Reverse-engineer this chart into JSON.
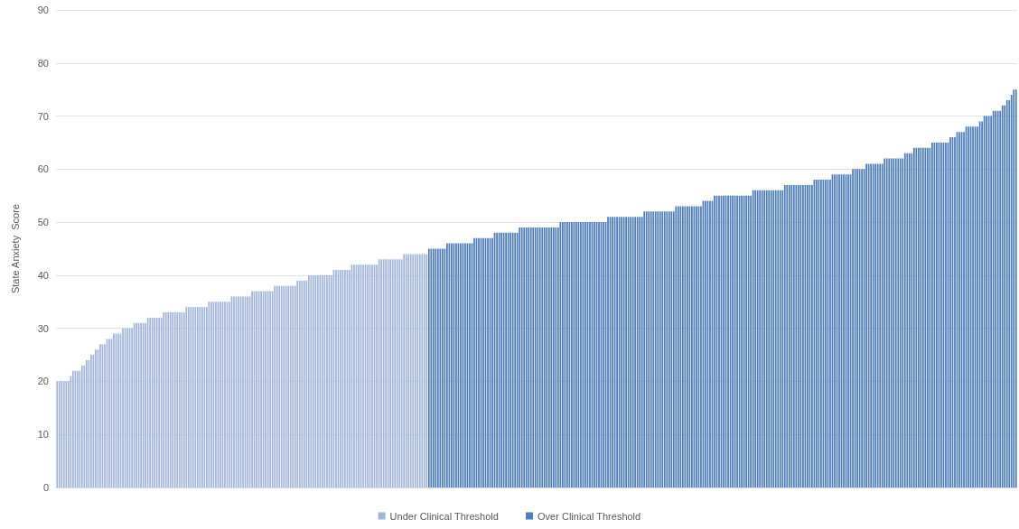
{
  "chart_data": {
    "type": "bar",
    "ylabel": "State Anxiety  Score",
    "ylim": [
      0,
      90
    ],
    "yticks": [
      0,
      10,
      20,
      30,
      40,
      50,
      60,
      70,
      80,
      90
    ],
    "grid": "y",
    "legend": "bottom",
    "categories": [
      null,
      null,
      null,
      null,
      null,
      null,
      null,
      null,
      null,
      null,
      null,
      null,
      null,
      null,
      null,
      null,
      null,
      null,
      null,
      null,
      null,
      null,
      null,
      null,
      null,
      null,
      null,
      null,
      null,
      null,
      null,
      null,
      null,
      null,
      null,
      null,
      null,
      null,
      null,
      null,
      null,
      null,
      null,
      null,
      null,
      null,
      null,
      null,
      null,
      null,
      null,
      null,
      null,
      null,
      null,
      null,
      null,
      null,
      null,
      null,
      null,
      null,
      null,
      null,
      null,
      null,
      null,
      null,
      null,
      null,
      null,
      null,
      null,
      null,
      null,
      null,
      null,
      null,
      null,
      null,
      null,
      null,
      null,
      null,
      null,
      null,
      null,
      null,
      null,
      null,
      null,
      null,
      null,
      null,
      null,
      null,
      null,
      null,
      null,
      null,
      null,
      null,
      null,
      null,
      null,
      null,
      null,
      null,
      null,
      null,
      null,
      null,
      null,
      null,
      null,
      null,
      null,
      null,
      null,
      null,
      null,
      null,
      null,
      null,
      null,
      null,
      null,
      null,
      null,
      null,
      null,
      null,
      null,
      null,
      null,
      null,
      null,
      null,
      null,
      null,
      null,
      null,
      null,
      null,
      null,
      null,
      null,
      null,
      null,
      null,
      null,
      null,
      null,
      null,
      null,
      null,
      null,
      null,
      null,
      null,
      null,
      null,
      null,
      null,
      null,
      null,
      null,
      null,
      null,
      null,
      null,
      null,
      null,
      null,
      null,
      null,
      null,
      null,
      null,
      null,
      null,
      null,
      null,
      null,
      null,
      null,
      null,
      null,
      null,
      null,
      null,
      null,
      null,
      null,
      null,
      null,
      null,
      null,
      null,
      null,
      null,
      null,
      null,
      null,
      null,
      null,
      null,
      null,
      null,
      null,
      null,
      null,
      null,
      null,
      null,
      null,
      null,
      null,
      null,
      null,
      null,
      null,
      null,
      null,
      null,
      null,
      null,
      null,
      null,
      null,
      null,
      null,
      null,
      null,
      null,
      null,
      null,
      null,
      null,
      null,
      null,
      null,
      null,
      null,
      null,
      null,
      null,
      null,
      null,
      null,
      null,
      null,
      null,
      null,
      null,
      null,
      null,
      null,
      null,
      null,
      null,
      null,
      null,
      null,
      null,
      null,
      null,
      null,
      null,
      null,
      null,
      null,
      null,
      null,
      null,
      null,
      null,
      null,
      null,
      null,
      null,
      null,
      null,
      null,
      null,
      null,
      null,
      null,
      null,
      null,
      null,
      null,
      null,
      null,
      null,
      null,
      null,
      null,
      null,
      null,
      null,
      null,
      null,
      null,
      null,
      null,
      null,
      null,
      null,
      null,
      null,
      null,
      null,
      null,
      null,
      null,
      null,
      null,
      null,
      null,
      null,
      null,
      null,
      null,
      null,
      null,
      null,
      null,
      null,
      null,
      null,
      null,
      null,
      null,
      null,
      null,
      null,
      null,
      null,
      null,
      null,
      null,
      null,
      null,
      null,
      null,
      null,
      null,
      null,
      null,
      null,
      null,
      null,
      null,
      null,
      null,
      null,
      null,
      null,
      null,
      null,
      null,
      null,
      null,
      null,
      null,
      null,
      null,
      null,
      null,
      null,
      null,
      null,
      null,
      null,
      null,
      null,
      null,
      null,
      null,
      null,
      null,
      null,
      null,
      null,
      null,
      null,
      null,
      null,
      null,
      null,
      null,
      null,
      null,
      null,
      null,
      null,
      null,
      null,
      null,
      null,
      null,
      null,
      null,
      null,
      null,
      null,
      null,
      null,
      null,
      null,
      null,
      null,
      null,
      null,
      null,
      null,
      null,
      null,
      null,
      null,
      null,
      null,
      null
    ],
    "series": [
      {
        "name": "Under Clinical Threshold",
        "color": "#a3b6d9",
        "values": [
          20,
          20,
          20,
          20,
          20,
          20,
          21,
          22,
          22,
          22,
          22,
          23,
          23,
          24,
          24,
          25,
          25,
          26,
          26,
          27,
          27,
          27,
          28,
          28,
          28,
          29,
          29,
          29,
          29,
          30,
          30,
          30,
          30,
          30,
          31,
          31,
          31,
          31,
          31,
          31,
          32,
          32,
          32,
          32,
          32,
          32,
          32,
          33,
          33,
          33,
          33,
          33,
          33,
          33,
          33,
          33,
          33,
          34,
          34,
          34,
          34,
          34,
          34,
          34,
          34,
          34,
          34,
          35,
          35,
          35,
          35,
          35,
          35,
          35,
          35,
          35,
          35,
          36,
          36,
          36,
          36,
          36,
          36,
          36,
          36,
          36,
          37,
          37,
          37,
          37,
          37,
          37,
          37,
          37,
          37,
          37,
          38,
          38,
          38,
          38,
          38,
          38,
          38,
          38,
          38,
          38,
          39,
          39,
          39,
          39,
          39,
          40,
          40,
          40,
          40,
          40,
          40,
          40,
          40,
          40,
          40,
          40,
          41,
          41,
          41,
          41,
          41,
          41,
          41,
          41,
          42,
          42,
          42,
          42,
          42,
          42,
          42,
          42,
          42,
          42,
          42,
          42,
          43,
          43,
          43,
          43,
          43,
          43,
          43,
          43,
          43,
          43,
          43,
          44,
          44,
          44,
          44,
          44,
          44,
          44,
          44,
          44,
          44,
          44,
          null,
          null,
          null,
          null,
          null,
          null,
          null,
          null,
          null,
          null,
          null,
          null,
          null,
          null,
          null,
          null,
          null,
          null,
          null,
          null,
          null,
          null,
          null,
          null,
          null,
          null,
          null,
          null,
          null,
          null,
          null,
          null,
          null,
          null,
          null,
          null,
          null,
          null,
          null,
          null,
          null,
          null,
          null,
          null,
          null,
          null,
          null,
          null,
          null,
          null,
          null,
          null,
          null,
          null,
          null,
          null,
          null,
          null,
          null,
          null,
          null,
          null,
          null,
          null,
          null,
          null,
          null,
          null,
          null,
          null,
          null,
          null,
          null,
          null,
          null,
          null,
          null,
          null,
          null,
          null,
          null,
          null,
          null,
          null,
          null,
          null,
          null,
          null,
          null,
          null,
          null,
          null,
          null,
          null,
          null,
          null,
          null,
          null,
          null,
          null,
          null,
          null,
          null,
          null,
          null,
          null,
          null,
          null,
          null,
          null,
          null,
          null,
          null,
          null,
          null,
          null,
          null,
          null,
          null,
          null,
          null,
          null,
          null,
          null,
          null,
          null,
          null,
          null,
          null,
          null,
          null,
          null,
          null,
          null,
          null,
          null,
          null,
          null,
          null,
          null,
          null,
          null,
          null,
          null,
          null,
          null,
          null,
          null,
          null,
          null,
          null,
          null,
          null,
          null,
          null,
          null,
          null,
          null,
          null,
          null,
          null,
          null,
          null,
          null,
          null,
          null,
          null,
          null,
          null,
          null,
          null,
          null,
          null,
          null,
          null,
          null,
          null,
          null,
          null,
          null,
          null,
          null,
          null,
          null,
          null,
          null,
          null,
          null,
          null,
          null,
          null,
          null,
          null,
          null,
          null,
          null,
          null,
          null,
          null,
          null,
          null,
          null,
          null,
          null,
          null,
          null,
          null,
          null,
          null,
          null,
          null,
          null,
          null,
          null,
          null,
          null,
          null,
          null,
          null,
          null,
          null,
          null,
          null,
          null,
          null,
          null,
          null,
          null,
          null,
          null,
          null,
          null,
          null,
          null,
          null,
          null,
          null,
          null,
          null,
          null,
          null,
          null,
          null,
          null,
          null,
          null,
          null,
          null,
          null,
          null,
          null,
          null,
          null,
          null,
          null,
          null,
          null,
          null,
          null,
          null
        ]
      },
      {
        "name": "Over Clinical Threshold",
        "color": "#4f7db8",
        "values": [
          null,
          null,
          null,
          null,
          null,
          null,
          null,
          null,
          null,
          null,
          null,
          null,
          null,
          null,
          null,
          null,
          null,
          null,
          null,
          null,
          null,
          null,
          null,
          null,
          null,
          null,
          null,
          null,
          null,
          null,
          null,
          null,
          null,
          null,
          null,
          null,
          null,
          null,
          null,
          null,
          null,
          null,
          null,
          null,
          null,
          null,
          null,
          null,
          null,
          null,
          null,
          null,
          null,
          null,
          null,
          null,
          null,
          null,
          null,
          null,
          null,
          null,
          null,
          null,
          null,
          null,
          null,
          null,
          null,
          null,
          null,
          null,
          null,
          null,
          null,
          null,
          null,
          null,
          null,
          null,
          null,
          null,
          null,
          null,
          null,
          null,
          null,
          null,
          null,
          null,
          null,
          null,
          null,
          null,
          null,
          null,
          null,
          null,
          null,
          null,
          null,
          null,
          null,
          null,
          null,
          null,
          null,
          null,
          null,
          null,
          null,
          null,
          null,
          null,
          null,
          null,
          null,
          null,
          null,
          null,
          null,
          null,
          null,
          null,
          null,
          null,
          null,
          null,
          null,
          null,
          null,
          null,
          null,
          null,
          null,
          null,
          null,
          null,
          null,
          null,
          null,
          null,
          null,
          null,
          null,
          null,
          null,
          null,
          null,
          null,
          null,
          null,
          null,
          null,
          null,
          null,
          null,
          null,
          null,
          null,
          null,
          null,
          null,
          null,
          45,
          45,
          45,
          45,
          45,
          45,
          45,
          45,
          46,
          46,
          46,
          46,
          46,
          46,
          46,
          46,
          46,
          46,
          46,
          46,
          47,
          47,
          47,
          47,
          47,
          47,
          47,
          47,
          47,
          48,
          48,
          48,
          48,
          48,
          48,
          48,
          48,
          48,
          48,
          48,
          49,
          49,
          49,
          49,
          49,
          49,
          49,
          49,
          49,
          49,
          49,
          49,
          49,
          49,
          49,
          49,
          49,
          49,
          50,
          50,
          50,
          50,
          50,
          50,
          50,
          50,
          50,
          50,
          50,
          50,
          50,
          50,
          50,
          50,
          50,
          50,
          50,
          50,
          50,
          51,
          51,
          51,
          51,
          51,
          51,
          51,
          51,
          51,
          51,
          51,
          51,
          51,
          51,
          51,
          51,
          52,
          52,
          52,
          52,
          52,
          52,
          52,
          52,
          52,
          52,
          52,
          52,
          52,
          52,
          53,
          53,
          53,
          53,
          53,
          53,
          53,
          53,
          53,
          53,
          53,
          53,
          54,
          54,
          54,
          54,
          54,
          55,
          55,
          55,
          55,
          55,
          55,
          55,
          55,
          55,
          55,
          55,
          55,
          55,
          55,
          55,
          55,
          55,
          56,
          56,
          56,
          56,
          56,
          56,
          56,
          56,
          56,
          56,
          56,
          56,
          56,
          56,
          57,
          57,
          57,
          57,
          57,
          57,
          57,
          57,
          57,
          57,
          57,
          57,
          57,
          58,
          58,
          58,
          58,
          58,
          58,
          58,
          58,
          59,
          59,
          59,
          59,
          59,
          59,
          59,
          59,
          59,
          60,
          60,
          60,
          60,
          60,
          60,
          61,
          61,
          61,
          61,
          61,
          61,
          61,
          61,
          62,
          62,
          62,
          62,
          62,
          62,
          62,
          62,
          62,
          63,
          63,
          63,
          63,
          64,
          64,
          64,
          64,
          64,
          64,
          64,
          64,
          65,
          65,
          65,
          65,
          65,
          65,
          65,
          65,
          66,
          66,
          66,
          67,
          67,
          67,
          67,
          68,
          68,
          68,
          68,
          68,
          68,
          69,
          69,
          70,
          70,
          70,
          70,
          71,
          71,
          71,
          71,
          72,
          72,
          73,
          73,
          74,
          75,
          75
        ]
      }
    ]
  }
}
